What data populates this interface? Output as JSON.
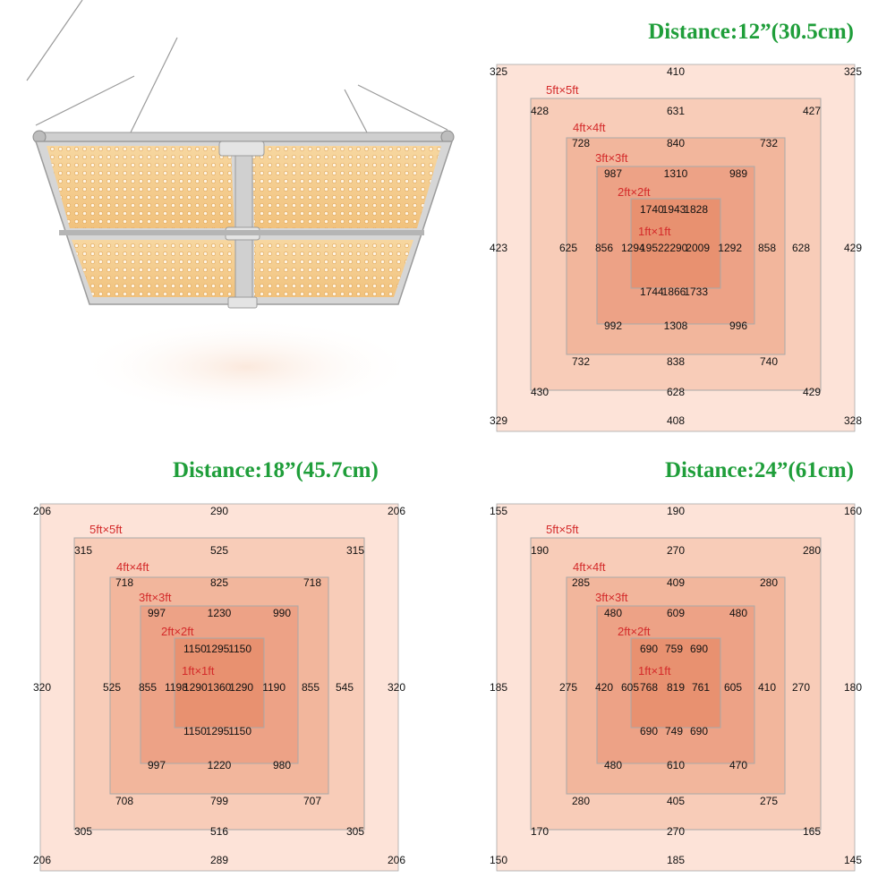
{
  "colors": {
    "title": "#1f9e3a",
    "ring_label": "#d42b2b",
    "level_fill": [
      "#fde3d8",
      "#f8ccb8",
      "#f2b69c",
      "#eda286",
      "#e89170"
    ],
    "grid_line": "#a9a9a9"
  },
  "ring_labels": [
    "5ft×5ft",
    "4ft×4ft",
    "3ft×3ft",
    "2ft×2ft",
    "1ft×1ft"
  ],
  "panels": [
    {
      "id": "d12",
      "title": "Distance:12”(30.5cm)",
      "rings": [
        {
          "tl": "325",
          "tc": "410",
          "tr": "325",
          "ml": "423",
          "mr": "429",
          "bl": "329",
          "bc": "408",
          "br": "328"
        },
        {
          "tl": "428",
          "tc": "631",
          "tr": "427",
          "ml": "625",
          "mr": "628",
          "bl": "430",
          "bc": "628",
          "br": "429"
        },
        {
          "tl": "728",
          "tc": "840",
          "tr": "732",
          "ml": "856",
          "mr": "858",
          "bl": "732",
          "bc": "838",
          "br": "740"
        },
        {
          "tl": "987",
          "tc": "1310",
          "tr": "989",
          "ml": "1294",
          "mr": "1292",
          "bl": "992",
          "bc": "1308",
          "br": "996"
        },
        {
          "tl": "1740",
          "tc": "1943",
          "tr": "1828",
          "ml": "1952",
          "mr": "2009",
          "bl": "1744",
          "bc": "1866",
          "br": "1733"
        }
      ],
      "center": "2290"
    },
    {
      "id": "d18",
      "title": "Distance:18”(45.7cm)",
      "rings": [
        {
          "tl": "206",
          "tc": "290",
          "tr": "206",
          "ml": "320",
          "mr": "320",
          "bl": "206",
          "bc": "289",
          "br": "206"
        },
        {
          "tl": "315",
          "tc": "525",
          "tr": "315",
          "ml": "525",
          "mr": "545",
          "bl": "305",
          "bc": "516",
          "br": "305"
        },
        {
          "tl": "718",
          "tc": "825",
          "tr": "718",
          "ml": "855",
          "mr": "855",
          "bl": "708",
          "bc": "799",
          "br": "707"
        },
        {
          "tl": "997",
          "tc": "1230",
          "tr": "990",
          "ml": "1198",
          "mr": "1190",
          "bl": "997",
          "bc": "1220",
          "br": "980"
        },
        {
          "tl": "1150",
          "tc": "1295",
          "tr": "1150",
          "ml": "1290",
          "mr": "1290",
          "bl": "1150",
          "bc": "1295",
          "br": "1150"
        }
      ],
      "center": "1360"
    },
    {
      "id": "d24",
      "title": "Distance:24”(61cm)",
      "rings": [
        {
          "tl": "155",
          "tc": "190",
          "tr": "160",
          "ml": "185",
          "mr": "180",
          "bl": "150",
          "bc": "185",
          "br": "145"
        },
        {
          "tl": "190",
          "tc": "270",
          "tr": "280",
          "ml": "275",
          "mr": "270",
          "bl": "170",
          "bc": "270",
          "br": "165"
        },
        {
          "tl": "285",
          "tc": "409",
          "tr": "280",
          "ml": "420",
          "mr": "410",
          "bl": "280",
          "bc": "405",
          "br": "275"
        },
        {
          "tl": "480",
          "tc": "609",
          "tr": "480",
          "ml": "605",
          "mr": "605",
          "bl": "480",
          "bc": "610",
          "br": "470"
        },
        {
          "tl": "690",
          "tc": "759",
          "tr": "690",
          "ml": "768",
          "mr": "761",
          "bl": "690",
          "bc": "749",
          "br": "690"
        }
      ],
      "center": "819"
    }
  ]
}
